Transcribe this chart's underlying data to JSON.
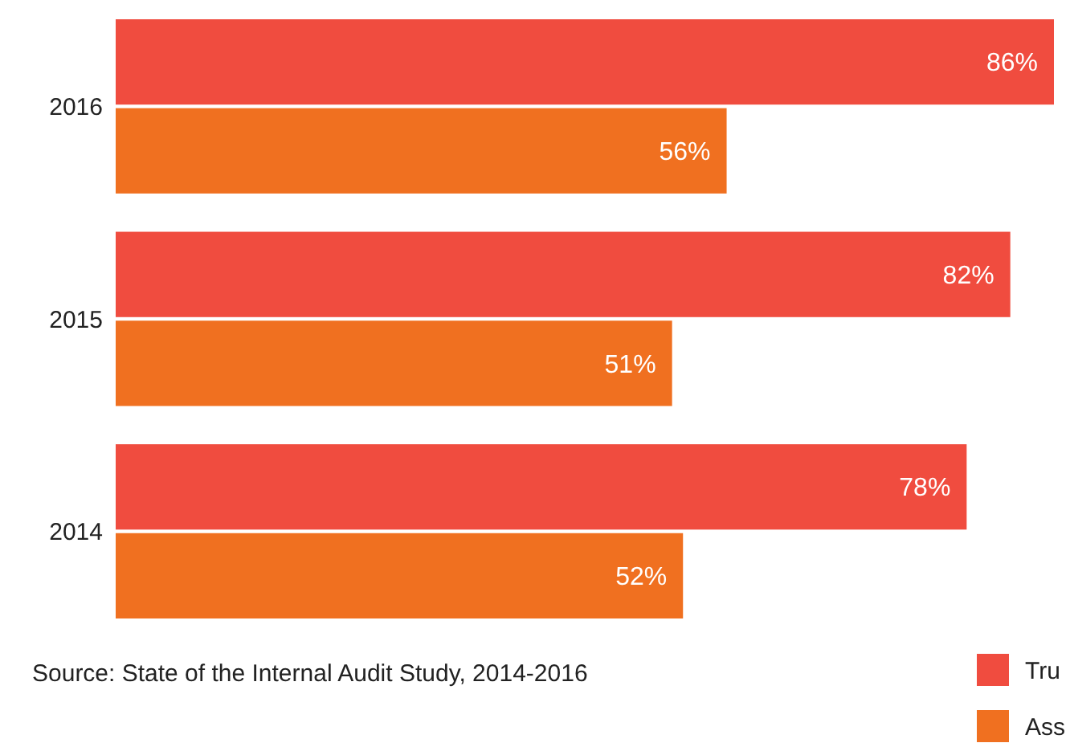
{
  "chart_data": {
    "type": "bar",
    "orientation": "horizontal",
    "categories": [
      "2016",
      "2015",
      "2014"
    ],
    "series": [
      {
        "name": "Tru",
        "color": "#f04c3f",
        "values": [
          86,
          82,
          78
        ],
        "value_labels": [
          "86%",
          "82%",
          "78%"
        ]
      },
      {
        "name": "Ass",
        "color": "#f07020",
        "values": [
          56,
          51,
          52
        ],
        "value_labels": [
          "56%",
          "51%",
          "52%"
        ]
      }
    ],
    "legend": "bottom right",
    "annotations": [
      "Source: State of the Internal Audit Study, 2014-2016"
    ]
  }
}
